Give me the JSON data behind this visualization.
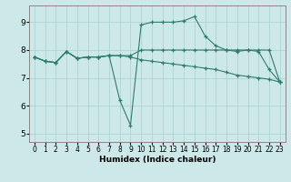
{
  "title": "",
  "xlabel": "Humidex (Indice chaleur)",
  "background_color": "#cce8e8",
  "line_color": "#2d7d6e",
  "grid_color": "#aacfcf",
  "xlim": [
    -0.5,
    23.5
  ],
  "ylim": [
    4.7,
    9.6
  ],
  "xticks": [
    0,
    1,
    2,
    3,
    4,
    5,
    6,
    7,
    8,
    9,
    10,
    11,
    12,
    13,
    14,
    15,
    16,
    17,
    18,
    19,
    20,
    21,
    22,
    23
  ],
  "yticks": [
    5,
    6,
    7,
    8,
    9
  ],
  "line1_x": [
    0,
    1,
    2,
    3,
    4,
    5,
    6,
    7,
    8,
    9,
    10,
    11,
    12,
    13,
    14,
    15,
    16,
    17,
    18,
    19,
    20,
    21,
    22,
    23
  ],
  "line1_y": [
    7.75,
    7.6,
    7.55,
    7.95,
    7.7,
    7.75,
    7.75,
    7.8,
    7.8,
    7.8,
    8.0,
    8.0,
    8.0,
    8.0,
    8.0,
    8.0,
    8.0,
    8.0,
    8.0,
    8.0,
    8.0,
    8.0,
    8.0,
    6.85
  ],
  "line2_x": [
    0,
    1,
    2,
    3,
    4,
    5,
    6,
    7,
    8,
    9,
    10,
    11,
    12,
    13,
    14,
    15,
    16,
    17,
    18,
    19,
    20,
    21,
    22,
    23
  ],
  "line2_y": [
    7.75,
    7.6,
    7.55,
    7.95,
    7.7,
    7.75,
    7.75,
    7.8,
    6.2,
    5.3,
    8.9,
    9.0,
    9.0,
    9.0,
    9.05,
    9.2,
    8.5,
    8.15,
    8.0,
    7.95,
    8.0,
    7.95,
    7.3,
    6.85
  ],
  "line3_x": [
    0,
    1,
    2,
    3,
    4,
    5,
    6,
    7,
    8,
    9,
    10,
    11,
    12,
    13,
    14,
    15,
    16,
    17,
    18,
    19,
    20,
    21,
    22,
    23
  ],
  "line3_y": [
    7.75,
    7.6,
    7.55,
    7.95,
    7.7,
    7.75,
    7.75,
    7.8,
    7.8,
    7.75,
    7.65,
    7.6,
    7.55,
    7.5,
    7.45,
    7.4,
    7.35,
    7.3,
    7.2,
    7.1,
    7.05,
    7.0,
    6.95,
    6.85
  ]
}
